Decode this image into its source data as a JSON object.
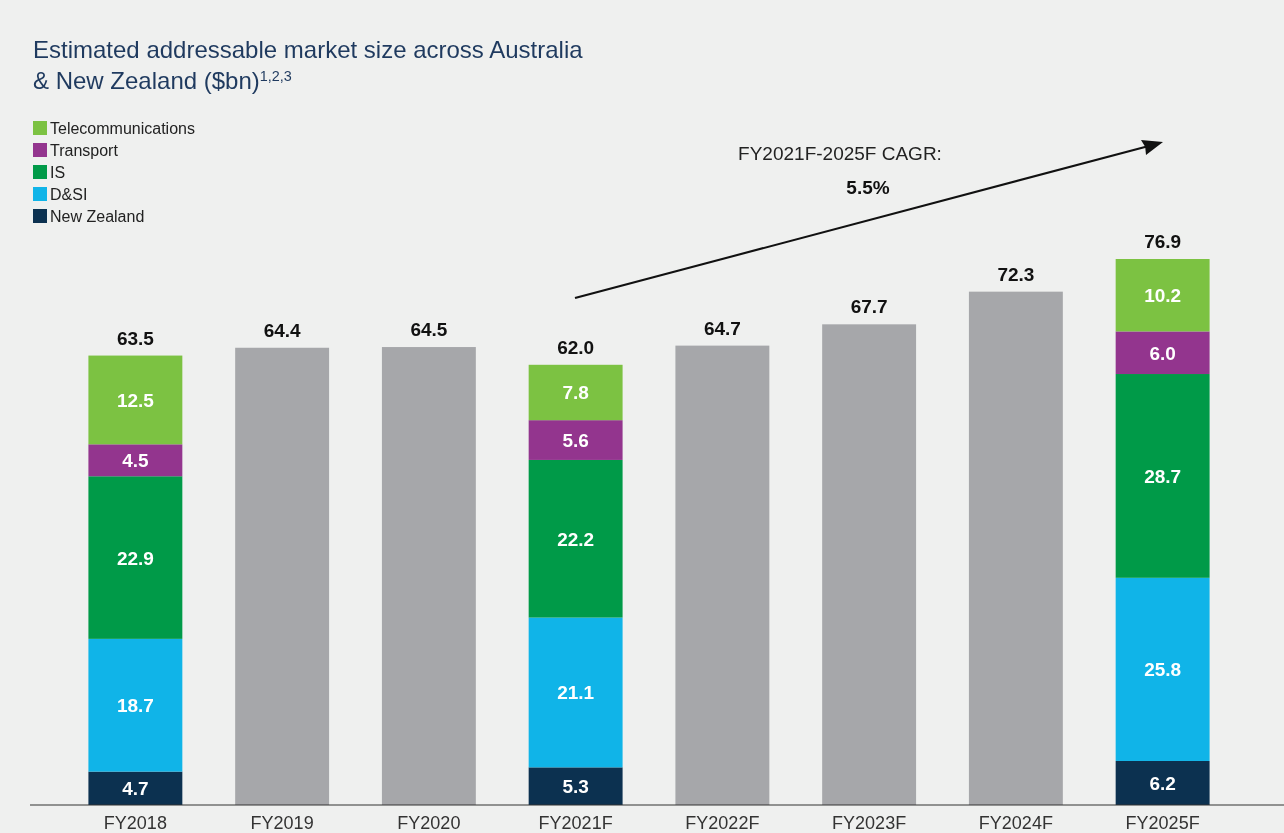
{
  "chart_data": {
    "type": "bar",
    "title": "Estimated addressable market size across Australia\n& New Zealand ($bn)$^{1,2,3}$",
    "categories": [
      "FY2018",
      "FY2019",
      "FY2020",
      "FY2021F",
      "FY2022F",
      "FY2023F",
      "FY2024F",
      "FY2025F"
    ],
    "stacked": true,
    "legend": "top left",
    "series": [
      {
        "name": "New Zealand",
        "color": "#0c3150",
        "values": [
          4.7,
          null,
          null,
          5.3,
          null,
          null,
          null,
          6.2
        ],
        "value_labels": [
          "4.7",
          null,
          null,
          "5.3",
          null,
          null,
          null,
          "6.2"
        ]
      },
      {
        "name": "D&SI",
        "color": "#10b4e8",
        "values": [
          18.7,
          null,
          null,
          21.1,
          null,
          null,
          null,
          25.8
        ],
        "value_labels": [
          "18.7",
          null,
          null,
          "21.1",
          null,
          null,
          null,
          "25.8"
        ]
      },
      {
        "name": "IS",
        "color": "#009a48",
        "values": [
          22.9,
          null,
          null,
          22.2,
          null,
          null,
          null,
          28.7
        ],
        "value_labels": [
          "22.9",
          null,
          null,
          "22.2",
          null,
          null,
          null,
          "28.7"
        ]
      },
      {
        "name": "Transport",
        "color": "#93358e",
        "values": [
          4.5,
          null,
          null,
          5.6,
          null,
          null,
          null,
          6.0
        ],
        "value_labels": [
          "4.5",
          null,
          null,
          "5.6",
          null,
          null,
          null,
          "6.0"
        ]
      },
      {
        "name": "Telecommunications",
        "color": "#7cc242",
        "values": [
          12.5,
          null,
          null,
          7.8,
          null,
          null,
          null,
          10.2
        ],
        "value_labels": [
          "12.5",
          null,
          null,
          "7.8",
          null,
          null,
          null,
          "10.2"
        ]
      },
      {
        "color": "#a6a7aa",
        "values": [
          null,
          64.4,
          64.5,
          null,
          64.7,
          67.7,
          72.3,
          null
        ]
      }
    ],
    "totals": [
      "63.5",
      "64.4",
      "64.5",
      "62.0",
      "64.7",
      "67.7",
      "72.3",
      "76.9"
    ],
    "annotations": [
      "FY2021F-2025F CAGR:",
      "5.5%"
    ]
  }
}
